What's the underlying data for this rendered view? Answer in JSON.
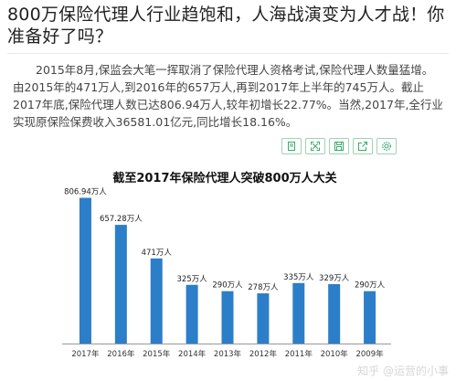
{
  "article": {
    "headline": "800万保险代理人行业趋饱和，人海战演变为人才战！你准备好了吗？",
    "body": "2015年8月,保监会大笔一挥取消了保险代理人资格考试,保险代理人数量猛增。由2015年的471万人,到2016年的657万人,再到2017年上半年的745万人。截止2017年底,保险代理人数已达806.94万人,较年初增长22.77%。当然,2017年,全行业实现原保险保费收入36581.01亿元,同比增长18.16%。"
  },
  "toolbar": {
    "icons": [
      "copy-icon",
      "expand-icon",
      "save-icon",
      "share-icon",
      "settings-icon"
    ]
  },
  "watermark": "知乎 @运营的小事",
  "colors": {
    "bar": "#2c7ec8",
    "toolbar_accent": "#3aa86b",
    "axis": "#999999"
  },
  "chart_data": {
    "type": "bar",
    "title": "截至2017年保险代理人突破800万人大关",
    "categories": [
      "2017年",
      "2016年",
      "2015年",
      "2014年",
      "2013年",
      "2012年",
      "2011年",
      "2010年",
      "2009年"
    ],
    "values": [
      806.94,
      657.28,
      471,
      325,
      290,
      278,
      335,
      329,
      290
    ],
    "data_labels": [
      "806.94万人",
      "657.28万人",
      "471万人",
      "325万人",
      "290万人",
      "278万人",
      "335万人",
      "329万人",
      "290万人"
    ],
    "ylim": [
      0,
      850
    ],
    "grid": false,
    "legend": "none"
  }
}
